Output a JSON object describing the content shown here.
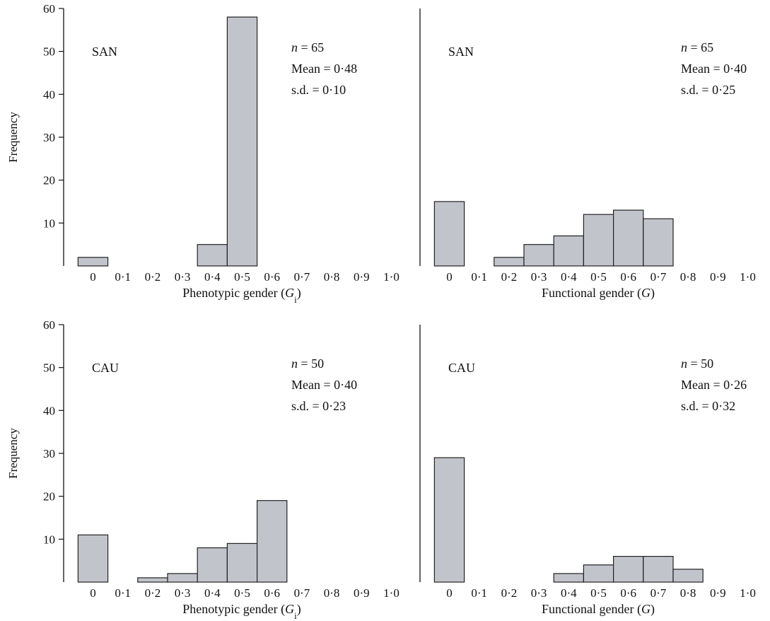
{
  "chart_data": [
    {
      "type": "bar",
      "row": 0,
      "col": 0,
      "panel_label": "SAN",
      "xlabel_main": "Phenotypic gender (",
      "xlabel_var": "G",
      "xlabel_sub": "i",
      "xlabel_end": ")",
      "ylabel": "Frequency",
      "ylim": [
        0,
        60
      ],
      "yticks": [
        "10",
        "20",
        "30",
        "40",
        "50",
        "60"
      ],
      "categories": [
        "0",
        "0·1",
        "0·2",
        "0·3",
        "0·4",
        "0·5",
        "0·6",
        "0·7",
        "0·8",
        "0·9",
        "1·0"
      ],
      "values": [
        2,
        0,
        0,
        0,
        5,
        58,
        0,
        0,
        0,
        0,
        0
      ],
      "stats": {
        "n_symbol": "n",
        "n_value": " = 65",
        "mean": "Mean = 0·48",
        "sd": "s.d. = 0·10"
      }
    },
    {
      "type": "bar",
      "row": 0,
      "col": 1,
      "panel_label": "SAN",
      "xlabel_main": "Functional gender (",
      "xlabel_var": "G",
      "xlabel_sub": "",
      "xlabel_end": ")",
      "ylim": [
        0,
        60
      ],
      "categories": [
        "0",
        "0·1",
        "0·2",
        "0·3",
        "0·4",
        "0·5",
        "0·6",
        "0·7",
        "0·8",
        "0·9",
        "1·0"
      ],
      "values": [
        15,
        0,
        2,
        5,
        7,
        12,
        13,
        11,
        0,
        0,
        0
      ],
      "stats": {
        "n_symbol": "n",
        "n_value": " = 65",
        "mean": "Mean = 0·40",
        "sd": "s.d. = 0·25"
      }
    },
    {
      "type": "bar",
      "row": 1,
      "col": 0,
      "panel_label": "CAU",
      "xlabel_main": "Phenotypic gender (",
      "xlabel_var": "G",
      "xlabel_sub": "i",
      "xlabel_end": ")",
      "ylabel": "Frequency",
      "ylim": [
        0,
        60
      ],
      "yticks": [
        "10",
        "20",
        "30",
        "40",
        "50",
        "60"
      ],
      "categories": [
        "0",
        "0·1",
        "0·2",
        "0·3",
        "0·4",
        "0·5",
        "0·6",
        "0·7",
        "0·8",
        "0·9",
        "1·0"
      ],
      "values": [
        11,
        0,
        1,
        2,
        8,
        9,
        19,
        0,
        0,
        0,
        0
      ],
      "stats": {
        "n_symbol": "n",
        "n_value": " = 50",
        "mean": "Mean = 0·40",
        "sd": "s.d. = 0·23"
      }
    },
    {
      "type": "bar",
      "row": 1,
      "col": 1,
      "panel_label": "CAU",
      "xlabel_main": "Functional gender (",
      "xlabel_var": "G",
      "xlabel_sub": "",
      "xlabel_end": ")",
      "ylim": [
        0,
        60
      ],
      "categories": [
        "0",
        "0·1",
        "0·2",
        "0·3",
        "0·4",
        "0·5",
        "0·6",
        "0·7",
        "0·8",
        "0·9",
        "1·0"
      ],
      "values": [
        29,
        0,
        0,
        0,
        2,
        4,
        6,
        6,
        3,
        0,
        0
      ],
      "stats": {
        "n_symbol": "n",
        "n_value": " = 50",
        "mean": "Mean = 0·26",
        "sd": "s.d. = 0·32"
      }
    }
  ],
  "colors": {
    "bar_fill": "#c2c4cc",
    "bar_edge": "#222222",
    "axis": "#111111"
  }
}
